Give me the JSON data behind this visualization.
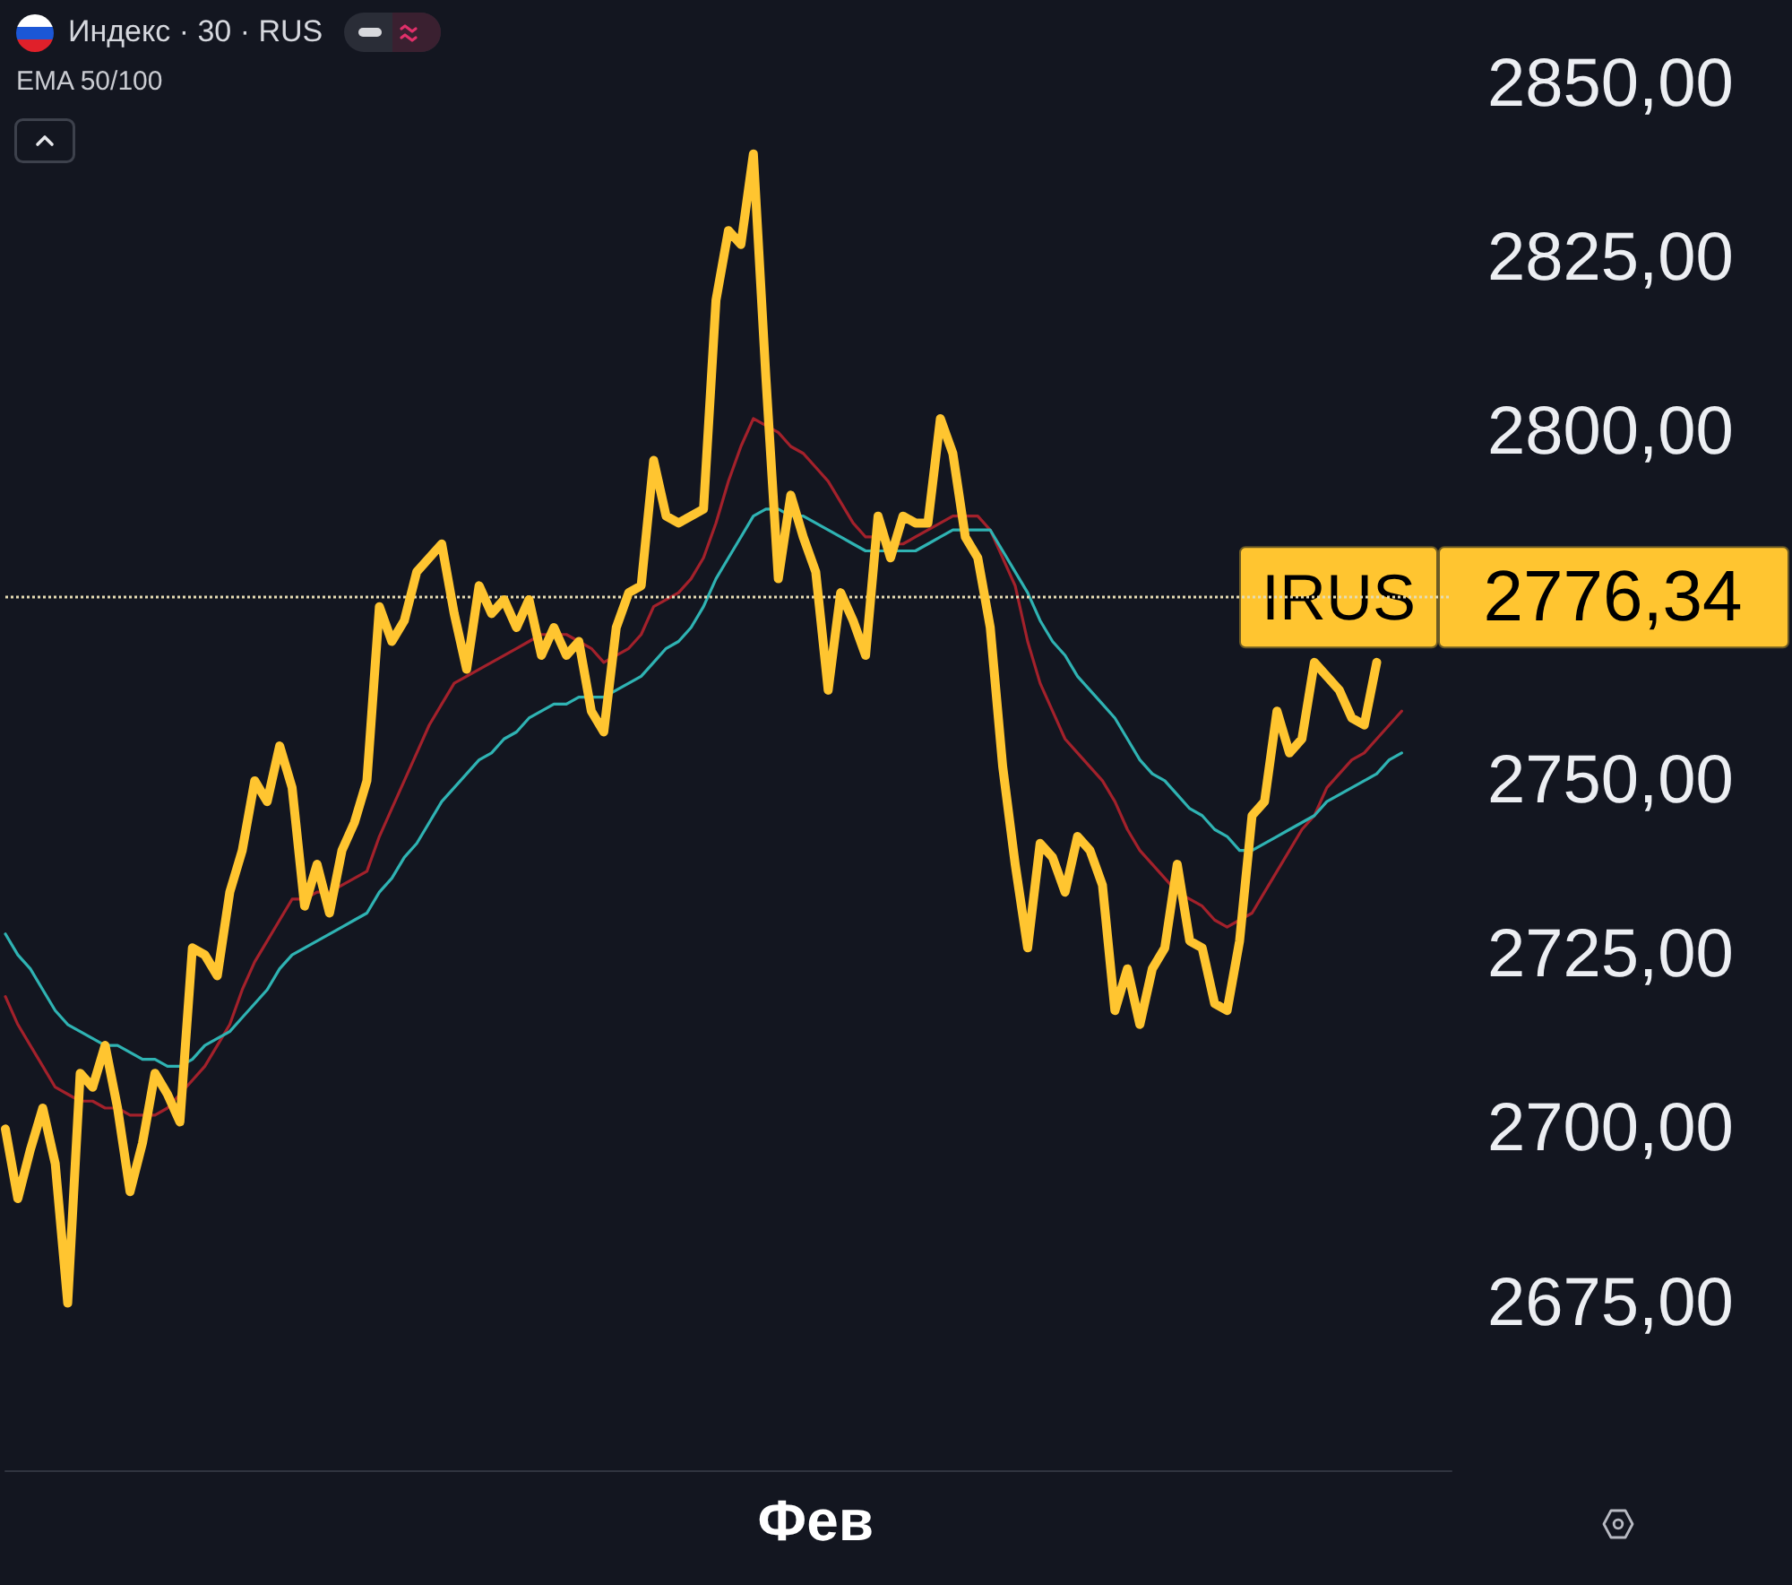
{
  "chart_data": {
    "type": "line",
    "title": "Индекс · 30 · RUS",
    "annotations": [
      "EMA 50/100",
      "2776,34"
    ],
    "categories": [
      null,
      null,
      null,
      null,
      null,
      null,
      null,
      null,
      null,
      null,
      null,
      null,
      null,
      null,
      null,
      null,
      null,
      null,
      null,
      null,
      null,
      null,
      null,
      null,
      null,
      null,
      null,
      null,
      null,
      null,
      null,
      null,
      null,
      null,
      null,
      null,
      null,
      null,
      null,
      null,
      null,
      null,
      null,
      null,
      null,
      null,
      null,
      null,
      null,
      null,
      null,
      null,
      null,
      null,
      null,
      null,
      null,
      null,
      null,
      null,
      null,
      null,
      null,
      null,
      null,
      "Фев",
      null,
      null,
      null,
      null,
      null,
      null,
      null,
      null,
      null,
      null,
      null,
      null,
      null,
      null,
      null,
      null,
      null,
      null,
      null,
      null,
      null,
      null,
      null,
      null,
      null,
      null,
      null,
      null,
      null,
      null,
      null,
      null,
      null,
      null,
      null,
      null,
      null,
      null,
      null,
      null,
      null,
      null,
      null,
      null,
      null,
      null,
      null,
      null,
      null,
      null,
      null
    ],
    "series": [
      {
        "color": "#ffc530",
        "values": [
          2700,
          2690,
          2697,
          2703,
          2695,
          2675,
          2708,
          2706,
          2712,
          2703,
          2691,
          2698,
          2708,
          2705,
          2701,
          2726,
          2725,
          2722,
          2734,
          2740,
          2750,
          2747,
          2755,
          2749,
          2732,
          2738,
          2731,
          2740,
          2744,
          2750,
          2775,
          2770,
          2773,
          2780,
          2782,
          2784,
          2774,
          2766,
          2778,
          2774,
          2776,
          2772,
          2776,
          2768,
          2772,
          2768,
          2770,
          2760,
          2757,
          2772,
          2777,
          2778,
          2796,
          2788,
          2787,
          2788,
          2789,
          2819,
          2829,
          2827,
          2840,
          2808,
          2779,
          2791,
          2785,
          2780,
          2763,
          2777,
          2773,
          2768,
          2788,
          2782,
          2788,
          2787,
          2787,
          2802,
          2797,
          2785,
          2782,
          2772,
          2752,
          2738,
          2726,
          2741,
          2739,
          2734,
          2742,
          2740,
          2735,
          2717,
          2723,
          2715,
          2723,
          2726,
          2738,
          2727,
          2726,
          2718,
          2717,
          2727,
          2745,
          2747,
          2760,
          2754,
          2756,
          2767,
          2765,
          2763,
          2759,
          2758,
          2767,
          null,
          null,
          null,
          null,
          null,
          null
        ]
      },
      {
        "color": "#a3212b",
        "values": [
          2719,
          2715,
          2712,
          2709,
          2706,
          2705,
          2704,
          2704,
          2703,
          2703,
          2702,
          2702,
          2702,
          2703,
          2705,
          2707,
          2709,
          2712,
          2715,
          2720,
          2724,
          2727,
          2730,
          2733,
          2733,
          2734,
          2734,
          2735,
          2736,
          2737,
          2742,
          2746,
          2750,
          2754,
          2758,
          2761,
          2764,
          2765,
          2766,
          2767,
          2768,
          2769,
          2770,
          2771,
          2771,
          2771,
          2770,
          2769,
          2767,
          2768,
          2769,
          2771,
          2775,
          2776,
          2777,
          2779,
          2782,
          2787,
          2793,
          2798,
          2802,
          2801,
          2800,
          2798,
          2797,
          2795,
          2793,
          2790,
          2787,
          2785,
          2785,
          2784,
          2784,
          2785,
          2786,
          2787,
          2788,
          2788,
          2788,
          2786,
          2782,
          2778,
          2770,
          2764,
          2760,
          2756,
          2754,
          2752,
          2750,
          2747,
          2743,
          2740,
          2738,
          2736,
          2734,
          2733,
          2732,
          2730,
          2729,
          2730,
          2731,
          2734,
          2737,
          2740,
          2743,
          2745,
          2749,
          2751,
          2753,
          2754,
          2756,
          2758,
          2760,
          null,
          null,
          null,
          null
        ]
      },
      {
        "color": "#2fb3b3",
        "values": [
          2728,
          2725,
          2723,
          2720,
          2717,
          2715,
          2714,
          2713,
          2712,
          2712,
          2711,
          2710,
          2710,
          2709,
          2709,
          2710,
          2712,
          2713,
          2714,
          2716,
          2718,
          2720,
          2723,
          2725,
          2726,
          2727,
          2728,
          2729,
          2730,
          2731,
          2734,
          2736,
          2739,
          2741,
          2744,
          2747,
          2749,
          2751,
          2753,
          2754,
          2756,
          2757,
          2759,
          2760,
          2761,
          2761,
          2762,
          2762,
          2762,
          2763,
          2764,
          2765,
          2767,
          2769,
          2770,
          2772,
          2775,
          2779,
          2782,
          2785,
          2788,
          2789,
          2789,
          2788,
          2788,
          2787,
          2786,
          2785,
          2784,
          2783,
          2783,
          2783,
          2783,
          2783,
          2784,
          2785,
          2786,
          2786,
          2786,
          2786,
          2783,
          2780,
          2777,
          2773,
          2770,
          2768,
          2765,
          2763,
          2761,
          2759,
          2756,
          2753,
          2751,
          2750,
          2748,
          2746,
          2745,
          2743,
          2742,
          2740,
          2740,
          2741,
          2742,
          2743,
          2744,
          2745,
          2747,
          2748,
          2749,
          2750,
          2751,
          2753,
          2754,
          null,
          null,
          null,
          null
        ]
      }
    ],
    "ylim": [
      2651,
      2850
    ],
    "yticks": [
      {
        "value": 2675,
        "label": "2675,00"
      },
      {
        "value": 2700,
        "label": "2700,00"
      },
      {
        "value": 2725,
        "label": "2725,00"
      },
      {
        "value": 2750,
        "label": "2750,00"
      },
      {
        "value": 2800,
        "label": "2800,00"
      },
      {
        "value": 2825,
        "label": "2825,00"
      },
      {
        "value": 2850,
        "label": "2850,00"
      }
    ],
    "grid": false,
    "marker": "none",
    "line_style": "solid",
    "ref_lines": [
      {
        "axis": "y",
        "value": 2776.34,
        "label": "IRUS",
        "color": "#e6dcb4",
        "line_style": "dotted"
      }
    ]
  }
}
